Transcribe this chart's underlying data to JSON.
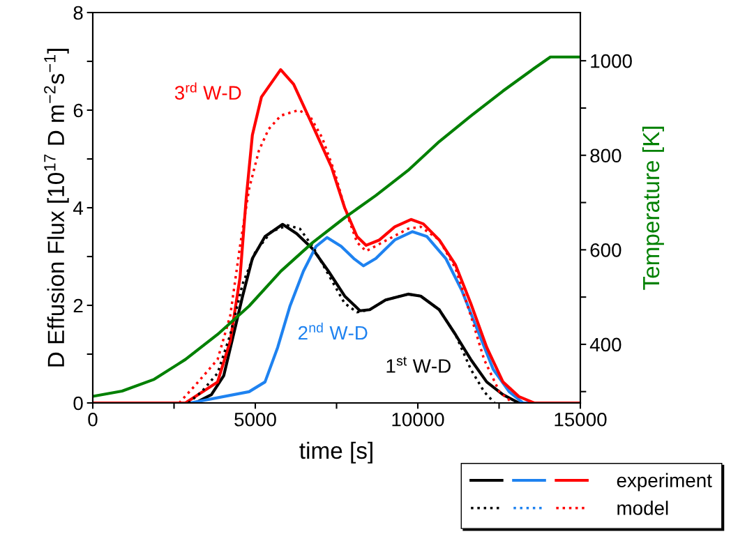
{
  "chart_data": {
    "type": "line",
    "xlabel": "time [s]",
    "ylabel": "D Effusion Flux [10$^{17}$ D m$^{−2}$s$^{−1}$]",
    "y2label": "Temperature [K]",
    "xlim": [
      0,
      15000
    ],
    "xticks": [
      0,
      {
        "value": 2500,
        "label": null
      },
      5000,
      {
        "value": 7500,
        "label": null
      },
      10000,
      {
        "value": 12500,
        "label": null
      },
      15000
    ],
    "ylim": [
      0,
      8
    ],
    "yticks": [
      0,
      {
        "value": 1,
        "label": null
      },
      2,
      {
        "value": 3,
        "label": null
      },
      4,
      {
        "value": 5,
        "label": null
      },
      6,
      {
        "value": 7,
        "label": null
      },
      8
    ],
    "y2lim": [
      276,
      1102
    ],
    "y2ticks": [
      {
        "value": 300,
        "label": null
      },
      400,
      {
        "value": 500,
        "label": null
      },
      600,
      {
        "value": 700,
        "label": null
      },
      800,
      {
        "value": 900,
        "label": null
      },
      1000
    ],
    "grid": false,
    "legend": "bottom right",
    "marker": "none",
    "series": [
      {
        "name": "experiment",
        "color": "#000000",
        "line_style": "solid",
        "x": [
          0,
          3150,
          3650,
          4030,
          4330,
          4610,
          4910,
          5300,
          5840,
          6270,
          6760,
          7250,
          7750,
          8220,
          8520,
          9010,
          9700,
          10090,
          10660,
          11160,
          11630,
          12120,
          12620,
          13110,
          15000
        ],
        "values": [
          0,
          0,
          0.17,
          0.56,
          1.4,
          2.19,
          2.96,
          3.41,
          3.66,
          3.47,
          3.16,
          2.7,
          2.19,
          1.89,
          1.91,
          2.11,
          2.23,
          2.19,
          1.91,
          1.4,
          0.89,
          0.43,
          0.17,
          0,
          0
        ]
      },
      {
        "color": "#1e82f0",
        "line_style": "solid",
        "x": [
          0,
          3000,
          4810,
          5300,
          5690,
          6070,
          6480,
          6870,
          7210,
          7640,
          8030,
          8330,
          8710,
          9290,
          9830,
          10280,
          10860,
          11350,
          11850,
          12320,
          12810,
          13240,
          15000
        ],
        "values": [
          0,
          0,
          0.23,
          0.43,
          1.14,
          1.99,
          2.7,
          3.21,
          3.39,
          3.21,
          2.96,
          2.81,
          2.96,
          3.34,
          3.51,
          3.41,
          2.96,
          2.31,
          1.47,
          0.69,
          0.23,
          0,
          0
        ]
      },
      {
        "color": "#ff0000",
        "line_style": "solid",
        "x": [
          0,
          2850,
          3840,
          4230,
          4530,
          4720,
          4910,
          5190,
          5780,
          6180,
          6760,
          7340,
          7750,
          8130,
          8410,
          8820,
          9290,
          9790,
          10170,
          10660,
          11160,
          11630,
          12120,
          12620,
          13110,
          13580,
          15000
        ],
        "values": [
          0,
          0,
          0.43,
          1.27,
          2.57,
          4.19,
          5.49,
          6.27,
          6.83,
          6.53,
          5.69,
          4.84,
          4.0,
          3.41,
          3.23,
          3.34,
          3.61,
          3.76,
          3.67,
          3.34,
          2.83,
          2.04,
          1.14,
          0.43,
          0.13,
          0,
          0
        ]
      },
      {
        "name": "model",
        "color": "#000000",
        "line_style": "dotted",
        "x": [
          2940,
          3350,
          3840,
          4230,
          4610,
          5000,
          5490,
          5990,
          6370,
          6760,
          7250,
          7750,
          8130,
          8520,
          9010,
          9700,
          10090,
          10660,
          11160,
          11630,
          12040,
          12360
        ],
        "values": [
          0,
          0.23,
          0.61,
          1.4,
          2.44,
          3.09,
          3.51,
          3.64,
          3.57,
          3.21,
          2.63,
          2.04,
          1.86,
          1.91,
          2.11,
          2.23,
          2.19,
          1.91,
          1.4,
          0.69,
          0.23,
          0
        ]
      },
      {
        "color": "#1e82f0",
        "line_style": "dotted"
      },
      {
        "color": "#ff0000",
        "line_style": "dotted",
        "x": [
          2660,
          3150,
          3840,
          4230,
          4530,
          4810,
          5110,
          5410,
          5790,
          6330,
          6670,
          7060,
          7450,
          7750,
          8130,
          8410,
          8910,
          9700,
          10090,
          10660,
          11160,
          11630,
          12040,
          12510,
          12920
        ],
        "values": [
          0,
          0.36,
          0.89,
          1.79,
          3.21,
          4.39,
          5.17,
          5.61,
          5.89,
          6.0,
          5.89,
          5.43,
          4.71,
          4.0,
          3.29,
          3.11,
          3.29,
          3.57,
          3.61,
          3.34,
          2.76,
          1.79,
          0.89,
          0.23,
          0
        ]
      },
      {
        "color": "#008000",
        "line_style": "solid",
        "axis": "y2",
        "x": [
          0,
          900,
          1890,
          2850,
          3840,
          4810,
          5790,
          6760,
          7750,
          8710,
          9700,
          10660,
          11630,
          12620,
          13580,
          14080,
          14200,
          15000
        ],
        "values": [
          290,
          301,
          326,
          368,
          421,
          481,
          555,
          615,
          668,
          715,
          768,
          829,
          883,
          936,
          984,
          1008,
          1008,
          1008
        ]
      }
    ],
    "annotations": [
      "1$^{st}$ W-D",
      "2$^{nd}$ W-D",
      "3$^{rd}$ W-D"
    ]
  }
}
